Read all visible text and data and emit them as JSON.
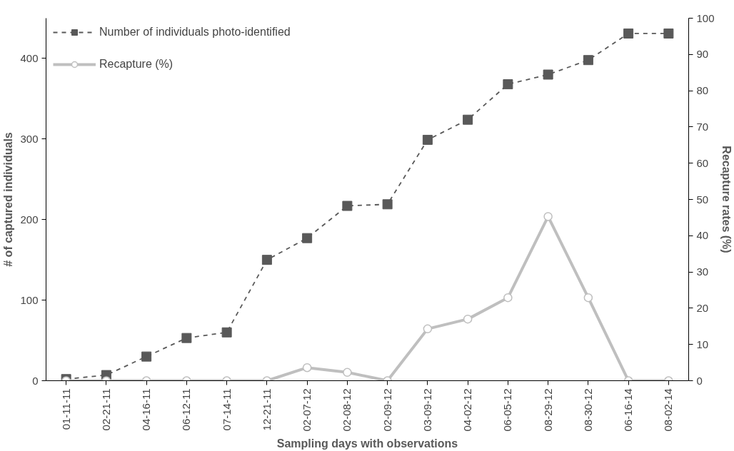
{
  "chart_data": {
    "type": "line",
    "xlabel": "Sampling days with observations",
    "ylabel": "# of captured individuals",
    "y2label": "Recapture rates (%)",
    "categories": [
      "01-11-11",
      "02-21-11",
      "04-16-11",
      "06-12-11",
      "07-14-11",
      "12-21-11",
      "02-07-12",
      "02-08-12",
      "02-09-12",
      "03-09-12",
      "04-02-12",
      "06-05-12",
      "08-29-12",
      "08-30-12",
      "06-16-14",
      "08-02-14"
    ],
    "series": [
      {
        "name": "Number of individuals photo-identified",
        "color": "#595959",
        "marker": "square",
        "line_style": "dashed",
        "values": [
          2,
          7,
          30,
          53,
          60,
          150,
          177,
          217,
          219,
          299,
          324,
          368,
          380,
          398,
          431,
          431
        ]
      },
      {
        "name": "Recapture (%)",
        "color": "#bfbfbf",
        "marker": "circle",
        "line_style": "solid",
        "axis": "y2",
        "values": [
          0,
          0,
          0,
          0,
          0,
          0,
          3.6,
          2.3,
          0,
          14.3,
          17,
          22.9,
          45.3,
          22.9,
          0,
          0
        ]
      }
    ],
    "ylim": [
      0,
      450
    ],
    "yticks": [
      0,
      100,
      200,
      300,
      400
    ],
    "y2lim": [
      0,
      100
    ],
    "y2ticks": [
      0,
      10,
      20,
      30,
      40,
      50,
      60,
      70,
      80,
      90,
      100
    ],
    "grid": false,
    "legend": "top left"
  }
}
